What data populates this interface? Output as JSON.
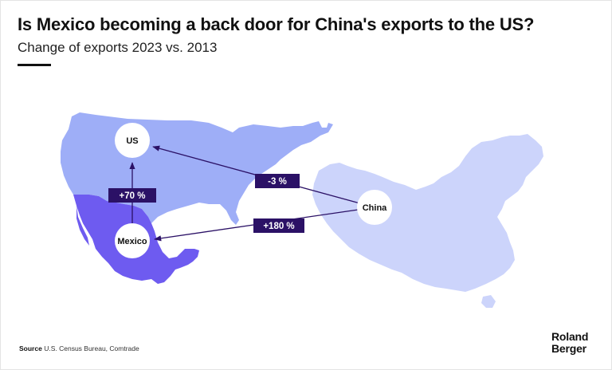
{
  "title": "Is Mexico becoming a back door for China's exports to the US?",
  "subtitle": "Change of exports 2023 vs. 2013",
  "colors": {
    "us_fill": "#9eaef7",
    "mexico_fill": "#6e5bf0",
    "china_fill": "#ccd4fb",
    "arrow": "#2b1166",
    "badge": "#2b1166"
  },
  "map": {
    "countries": [
      {
        "name": "US",
        "label": "US"
      },
      {
        "name": "Mexico",
        "label": "Mexico"
      },
      {
        "name": "China",
        "label": "China"
      }
    ],
    "flows": [
      {
        "from": "China",
        "to": "US",
        "change": "-3 %"
      },
      {
        "from": "China",
        "to": "Mexico",
        "change": "+180 %"
      },
      {
        "from": "Mexico",
        "to": "US",
        "change": "+70 %"
      }
    ]
  },
  "source": {
    "label": "Source",
    "text": "U.S. Census Bureau, Comtrade"
  },
  "logo": {
    "line1": "Roland",
    "line2": "Berger"
  }
}
